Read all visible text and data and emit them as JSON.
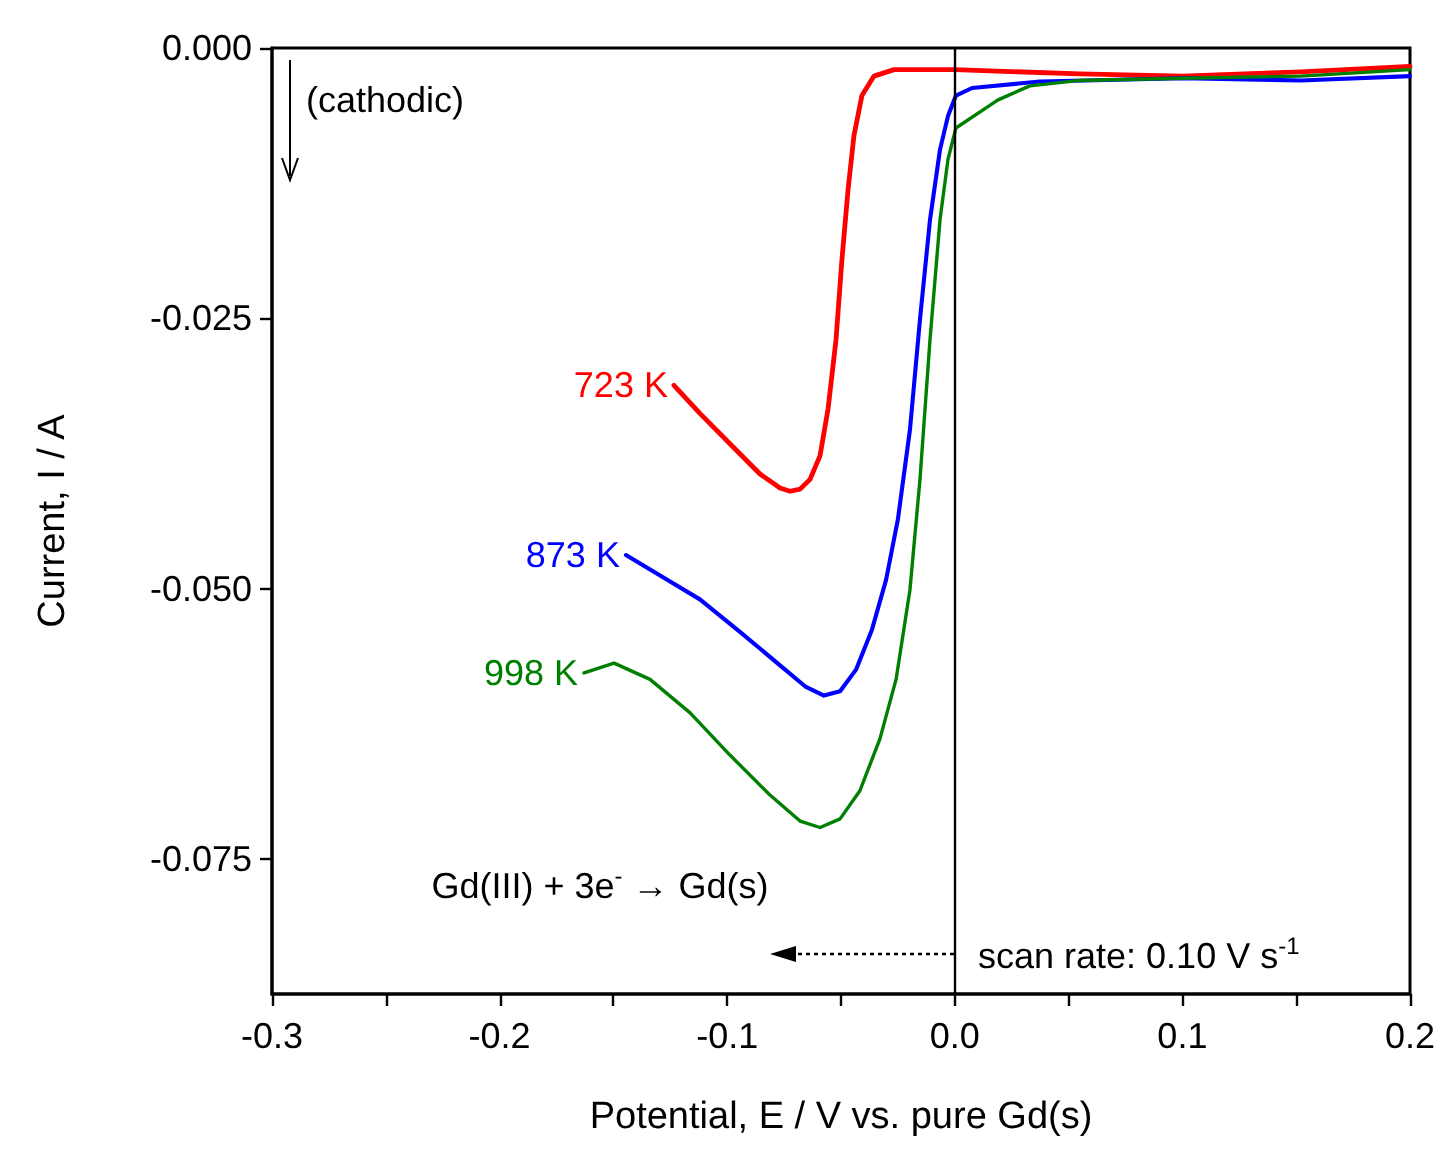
{
  "chart_data": {
    "type": "line",
    "xlabel": "Potential, E / V vs. pure Gd(s)",
    "ylabel": "Current, I / A",
    "annotations": [
      "(cathodic)",
      "Gd(III) + 3e$^{-}$ → Gd(s)",
      "scan rate: 0.10 V s$^{-1}$"
    ],
    "xlim": [
      -0.3,
      0.2
    ],
    "xticks": [
      -0.3,
      {
        "value": -0.25,
        "label": null
      },
      -0.2,
      {
        "value": -0.15,
        "label": null
      },
      -0.1,
      {
        "value": -0.05,
        "label": null
      },
      {
        "value": 0,
        "label": "0.0"
      },
      {
        "value": 0.05,
        "label": null
      },
      0.1,
      {
        "value": 0.15,
        "label": null
      },
      0.2
    ],
    "ylim": [
      -0.0875,
      0
    ],
    "yticks": [
      {
        "value": -0.075,
        "label": "-0.075"
      },
      {
        "value": -0.05,
        "label": "-0.050"
      },
      {
        "value": -0.025,
        "label": "-0.025"
      },
      {
        "value": 0,
        "label": "0.000"
      }
    ],
    "grid": false,
    "legend": false,
    "marker": "none",
    "line_style": "solid",
    "ref_lines": [
      {
        "axis": "x",
        "value": 0,
        "color": "#000000"
      }
    ],
    "series": [
      {
        "name": "723 K",
        "color": "#ff0000",
        "x": [
          -0.1234,
          -0.112,
          -0.0988,
          -0.0856,
          -0.0768,
          -0.0724,
          -0.068,
          -0.0636,
          -0.0592,
          -0.0557,
          -0.0522,
          -0.0496,
          -0.0469,
          -0.0443,
          -0.0408,
          -0.0355,
          -0.0267,
          0,
          0.055,
          0.1,
          0.152,
          0.2
        ],
        "values": [
          -0.0312,
          -0.0338,
          -0.0366,
          -0.0394,
          -0.0407,
          -0.041,
          -0.0408,
          -0.0399,
          -0.0377,
          -0.0334,
          -0.027,
          -0.0196,
          -0.0131,
          -0.0081,
          -0.0044,
          -0.0026,
          -0.002,
          -0.002,
          -0.0024,
          -0.0026,
          -0.0022,
          -0.0017
        ]
      },
      {
        "name": "873 K",
        "color": "#0000ff",
        "x": [
          -0.1445,
          -0.1295,
          -0.112,
          -0.0944,
          -0.0768,
          -0.0654,
          -0.0575,
          -0.0504,
          -0.0434,
          -0.0364,
          -0.0302,
          -0.025,
          -0.0197,
          -0.0153,
          -0.0109,
          -0.0065,
          -0.003,
          0.0005,
          0.0076,
          0.0374,
          0.1,
          0.152,
          0.2
        ],
        "values": [
          -0.0469,
          -0.0488,
          -0.051,
          -0.054,
          -0.0571,
          -0.0591,
          -0.0599,
          -0.0595,
          -0.0575,
          -0.0538,
          -0.0492,
          -0.0436,
          -0.0353,
          -0.0251,
          -0.0159,
          -0.0094,
          -0.0063,
          -0.0044,
          -0.0037,
          -0.0031,
          -0.0028,
          -0.003,
          -0.0026
        ]
      },
      {
        "name": "998 K",
        "color": "#008000",
        "x": [
          -0.1629,
          -0.1497,
          -0.1339,
          -0.1163,
          -0.0988,
          -0.0812,
          -0.068,
          -0.0592,
          -0.0504,
          -0.0417,
          -0.0329,
          -0.0258,
          -0.0197,
          -0.0153,
          -0.0109,
          -0.0065,
          -0.003,
          0.0005,
          0.0111,
          0.019,
          0.033,
          0.055,
          0.1,
          0.152,
          0.2
        ],
        "values": [
          -0.0578,
          -0.0569,
          -0.0584,
          -0.0615,
          -0.0654,
          -0.0691,
          -0.0715,
          -0.0721,
          -0.0713,
          -0.0687,
          -0.0639,
          -0.0584,
          -0.0501,
          -0.0399,
          -0.027,
          -0.0159,
          -0.0103,
          -0.0074,
          -0.0059,
          -0.0048,
          -0.0035,
          -0.003,
          -0.0028,
          -0.0026,
          -0.002
        ]
      }
    ]
  }
}
